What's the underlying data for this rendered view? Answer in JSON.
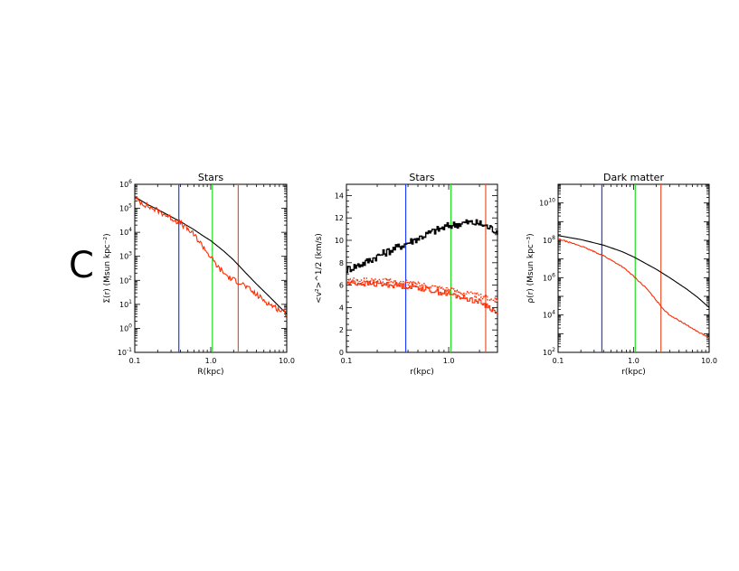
{
  "figure": {
    "panel_label": "C"
  },
  "colors": {
    "black": "#000000",
    "red": "#ff2a00",
    "blue": "#1f3cff",
    "green": "#22dd22",
    "orange": "#e8542a"
  },
  "chart_data": [
    {
      "type": "line",
      "title": "Stars",
      "xlabel": "R(kpc)",
      "ylabel": "Σ(r) (Msun kpc⁻²)",
      "xscale": "log",
      "yscale": "log",
      "xlim": [
        0.1,
        10.0
      ],
      "ylim": [
        0.1,
        1000000
      ],
      "xticks": [
        0.1,
        1.0,
        10.0
      ],
      "xtick_labels": [
        "0.1",
        "1.0",
        "10.0"
      ],
      "yticks": [
        0.1,
        1,
        10,
        100,
        1000,
        10000,
        100000,
        1000000
      ],
      "ytick_labels": [
        [
          "10",
          "-1"
        ],
        [
          "10",
          "0"
        ],
        [
          "10",
          "1"
        ],
        [
          "10",
          "2"
        ],
        [
          "10",
          "3"
        ],
        [
          "10",
          "4"
        ],
        [
          "10",
          "5"
        ],
        [
          "10",
          "6"
        ]
      ],
      "vlines": [
        {
          "x": 0.38,
          "color": "#1f3cff"
        },
        {
          "x": 1.05,
          "color": "#22dd22"
        },
        {
          "x": 2.3,
          "color": "#e8542a"
        }
      ],
      "series": [
        {
          "color": "#000000",
          "noise": 0,
          "x": [
            0.1,
            0.15,
            0.2,
            0.3,
            0.4,
            0.6,
            0.8,
            1.0,
            1.5,
            2.0,
            3.0,
            4.0,
            6.0,
            8.0,
            10.0
          ],
          "y": [
            300000,
            140000,
            90000,
            45000,
            28000,
            13000,
            7000,
            4500,
            1600,
            700,
            180,
            70,
            20,
            8,
            4
          ]
        },
        {
          "color": "#ff2a00",
          "noise": 0.12,
          "x": [
            0.1,
            0.15,
            0.2,
            0.3,
            0.4,
            0.6,
            0.8,
            1.0,
            1.3,
            1.8,
            2.5,
            3.0,
            4.0,
            6.0,
            8.0,
            10.0
          ],
          "y": [
            250000,
            120000,
            80000,
            40000,
            24000,
            8000,
            2500,
            900,
            300,
            120,
            80,
            50,
            25,
            10,
            6,
            4
          ]
        }
      ]
    },
    {
      "type": "line",
      "title": "Stars",
      "xlabel": "r(kpc)",
      "ylabel": "<v²>^1/2 (km/s)",
      "xscale": "log",
      "yscale": "linear",
      "xlim": [
        0.1,
        3.0
      ],
      "ylim": [
        0,
        15
      ],
      "xticks": [
        0.1,
        1.0
      ],
      "xtick_labels": [
        "0.1",
        "1.0"
      ],
      "yticks": [
        0,
        2,
        4,
        6,
        8,
        10,
        12,
        14
      ],
      "ytick_labels": [
        "0",
        "2",
        "4",
        "6",
        "8",
        "10",
        "12",
        "14"
      ],
      "vlines": [
        {
          "x": 0.38,
          "color": "#1f3cff"
        },
        {
          "x": 1.05,
          "color": "#22dd22"
        },
        {
          "x": 2.3,
          "color": "#e8542a"
        }
      ],
      "series": [
        {
          "color": "#000000",
          "noise": 0.35,
          "step": true,
          "x": [
            0.1,
            0.15,
            0.2,
            0.3,
            0.5,
            0.7,
            1.0,
            1.5,
            2.0,
            3.0
          ],
          "y": [
            7.4,
            8.0,
            8.6,
            9.3,
            10.2,
            10.8,
            11.3,
            11.6,
            11.5,
            10.8
          ]
        },
        {
          "color": "#ff2a00",
          "noise": 0.25,
          "step": true,
          "x": [
            0.1,
            0.2,
            0.3,
            0.5,
            0.7,
            1.0,
            1.5,
            2.0,
            2.5,
            3.0
          ],
          "y": [
            6.2,
            6.1,
            6.0,
            5.8,
            5.5,
            5.2,
            4.8,
            4.5,
            4.0,
            3.4
          ]
        },
        {
          "color": "#ff2a00",
          "noise": 0.25,
          "step": true,
          "dash": "2,1.5",
          "x": [
            0.1,
            0.2,
            0.3,
            0.5,
            0.7,
            1.0,
            1.5,
            2.0,
            2.5,
            3.0
          ],
          "y": [
            6.4,
            6.4,
            6.3,
            6.1,
            5.9,
            5.6,
            5.3,
            5.0,
            4.8,
            4.6
          ]
        }
      ]
    },
    {
      "type": "line",
      "title": "Dark matter",
      "xlabel": "r(kpc)",
      "ylabel": "ρ(r) (Msun kpc⁻³)",
      "xscale": "log",
      "yscale": "log",
      "xlim": [
        0.1,
        10.0
      ],
      "ylim": [
        100,
        100000000000
      ],
      "xticks": [
        0.1,
        1.0,
        10.0
      ],
      "xtick_labels": [
        "0.1",
        "1.0",
        "10.0"
      ],
      "yticks": [
        100,
        10000,
        1000000,
        100000000,
        10000000000
      ],
      "ytick_labels": [
        [
          "10",
          "2"
        ],
        [
          "10",
          "4"
        ],
        [
          "10",
          "6"
        ],
        [
          "10",
          "8"
        ],
        [
          "10",
          "10"
        ]
      ],
      "vlines": [
        {
          "x": 0.38,
          "color": "#1f3cff"
        },
        {
          "x": 1.05,
          "color": "#22dd22"
        },
        {
          "x": 2.3,
          "color": "#e8542a"
        }
      ],
      "series": [
        {
          "color": "#000000",
          "noise": 0,
          "x": [
            0.1,
            0.2,
            0.4,
            0.7,
            1.0,
            2.0,
            3.0,
            5.0,
            7.0,
            10.0
          ],
          "y": [
            180000000,
            110000000,
            55000000,
            25000000,
            13000000,
            2800000,
            1000000,
            250000,
            90000,
            25000
          ]
        },
        {
          "color": "#ff2a00",
          "noise": 0.03,
          "x": [
            0.1,
            0.2,
            0.4,
            0.7,
            1.0,
            1.5,
            2.0,
            2.5,
            3.0,
            5.0,
            7.0,
            10.0
          ],
          "y": [
            120000000,
            50000000,
            15000000,
            4000000,
            1200000,
            250000,
            60000,
            20000,
            10000,
            3000,
            1300,
            600
          ]
        }
      ]
    }
  ]
}
